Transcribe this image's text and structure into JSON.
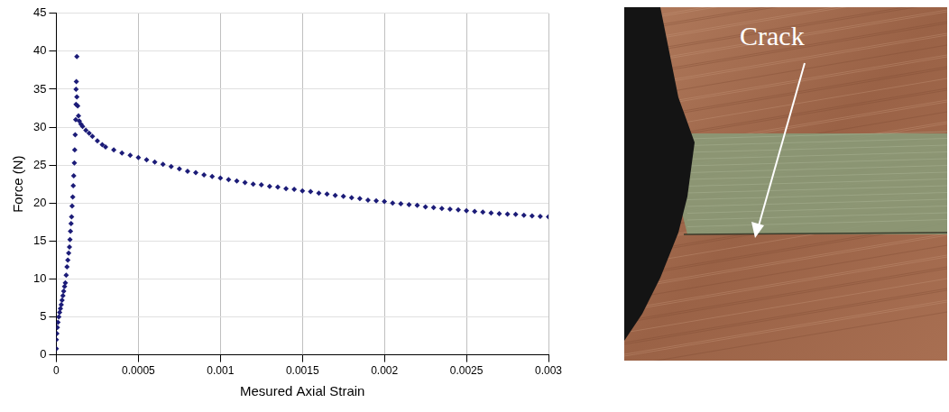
{
  "chart_data": {
    "type": "scatter",
    "x_label": "Mesured Axial Strain",
    "y_label": "Force (N)",
    "color": "#1c1c78",
    "marker": "diamond",
    "grid": true,
    "xlim": [
      0,
      0.003
    ],
    "xticks": [
      0,
      0.0005,
      0.001,
      0.0015,
      0.002,
      0.0025,
      0.003
    ],
    "ylim": [
      0,
      45
    ],
    "yticks": [
      0,
      5,
      10,
      15,
      20,
      25,
      30,
      35,
      40,
      45
    ],
    "x": [
      0,
      0,
      3e-06,
      6e-06,
      1e-05,
      1.5e-05,
      2e-05,
      2.5e-05,
      3e-05,
      3.5e-05,
      4e-05,
      4.5e-05,
      5e-05,
      5.5e-05,
      6e-05,
      6.5e-05,
      7e-05,
      7.5e-05,
      8e-05,
      8.3e-05,
      8.6e-05,
      9e-05,
      9.3e-05,
      9.6e-05,
      0.0001,
      0.000103,
      0.000106,
      0.00011,
      0.000112,
      0.000115,
      0.000118,
      0.00012,
      0.00012,
      0.000122,
      0.000125,
      0.000125,
      0.00013,
      0.000135,
      0.00014,
      0.00015,
      0.00016,
      0.00018,
      0.0002,
      0.00022,
      0.00025,
      0.00028,
      0.0003,
      0.00035,
      0.0004,
      0.00045,
      0.0005,
      0.00055,
      0.0006,
      0.00065,
      0.0007,
      0.00075,
      0.0008,
      0.00085,
      0.0009,
      0.00095,
      0.001,
      0.00105,
      0.0011,
      0.00115,
      0.0012,
      0.00125,
      0.0013,
      0.00135,
      0.0014,
      0.00145,
      0.0015,
      0.00155,
      0.0016,
      0.00165,
      0.0017,
      0.00175,
      0.0018,
      0.00185,
      0.0019,
      0.00195,
      0.002,
      0.00205,
      0.0021,
      0.00215,
      0.0022,
      0.00225,
      0.0023,
      0.00235,
      0.0024,
      0.00245,
      0.0025,
      0.00255,
      0.0026,
      0.00265,
      0.0027,
      0.00275,
      0.0028,
      0.00285,
      0.0029,
      0.00295,
      0.003
    ],
    "values": [
      0.8,
      2,
      2.8,
      3.6,
      4.3,
      5,
      5.6,
      6.1,
      6.6,
      7.2,
      7.8,
      8.4,
      9,
      9.5,
      10.5,
      11.6,
      12.5,
      13.4,
      14.2,
      15.2,
      16.3,
      17.3,
      18.2,
      19.6,
      20.8,
      22.3,
      23.6,
      25.3,
      27,
      29,
      31,
      33,
      35,
      36,
      39.3,
      34,
      32.8,
      31.5,
      30.8,
      30.4,
      30.1,
      29.6,
      29.2,
      28.8,
      28.2,
      27.7,
      27.4,
      27,
      26.6,
      26.3,
      26,
      25.7,
      25.4,
      25.1,
      24.8,
      24.5,
      24.2,
      24,
      23.7,
      23.5,
      23.3,
      23.1,
      22.9,
      22.7,
      22.5,
      22.4,
      22.2,
      22.1,
      21.9,
      21.8,
      21.6,
      21.5,
      21.3,
      21.2,
      21,
      20.9,
      20.7,
      20.6,
      20.4,
      20.3,
      20.2,
      20,
      19.9,
      19.8,
      19.7,
      19.5,
      19.4,
      19.3,
      19.2,
      19.1,
      19,
      18.9,
      18.8,
      18.7,
      18.6,
      18.55,
      18.5,
      18.4,
      18.3,
      18.25,
      18.2
    ]
  },
  "photo": {
    "annotation": "Crack"
  }
}
